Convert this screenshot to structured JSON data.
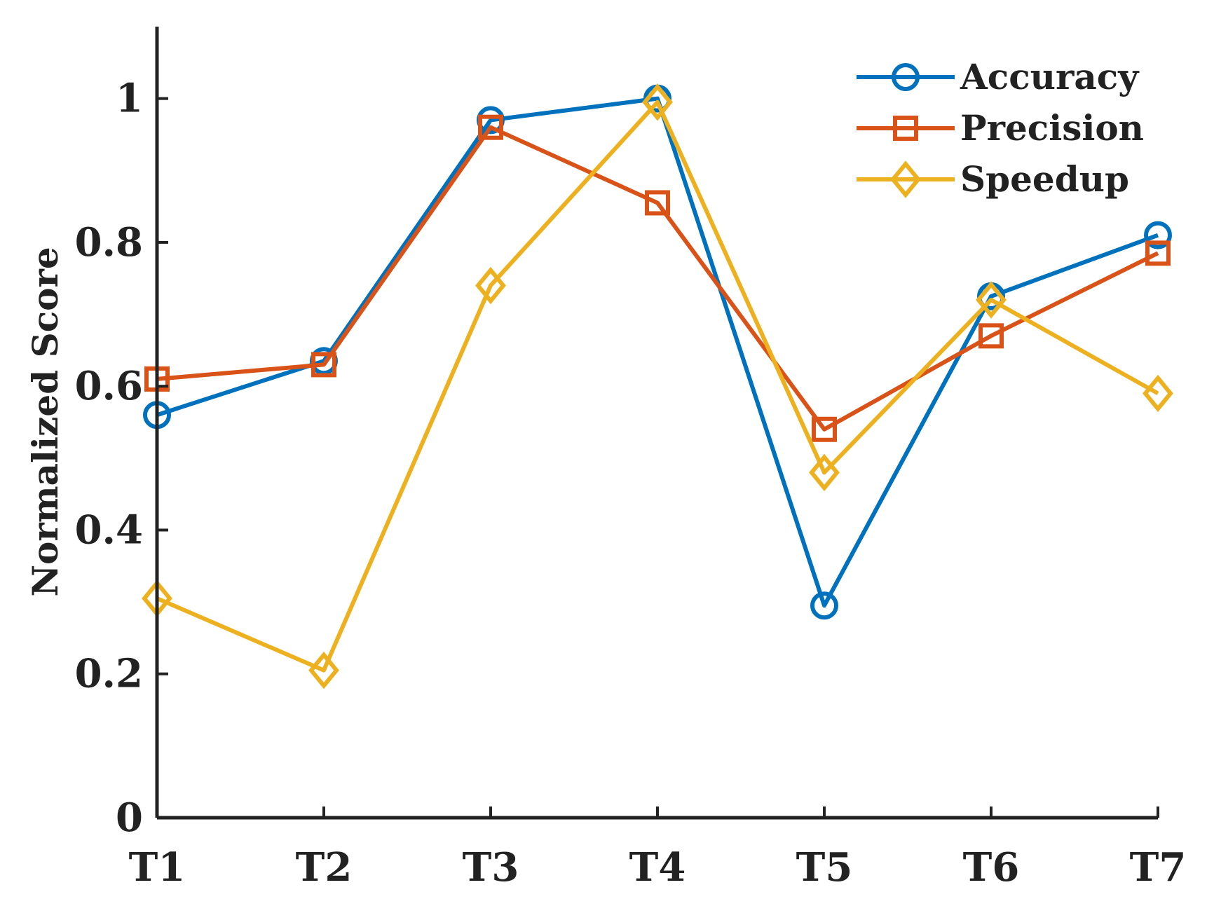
{
  "chart_data": {
    "type": "line",
    "title": "",
    "xlabel": "",
    "ylabel": "Normalized Score",
    "categories": [
      "T1",
      "T2",
      "T3",
      "T4",
      "T5",
      "T6",
      "T7"
    ],
    "ylim": [
      0,
      1.1
    ],
    "yticks": [
      0,
      0.2,
      0.4,
      0.6,
      0.8,
      1
    ],
    "ytick_labels": [
      "0",
      "0.2",
      "0.4",
      "0.6",
      "0.8",
      "1"
    ],
    "grid": false,
    "legend_position": "top-right",
    "series": [
      {
        "name": "Accuracy",
        "marker": "circle",
        "color": "#0072BD",
        "values": [
          0.56,
          0.635,
          0.97,
          1.0,
          0.295,
          0.725,
          0.81
        ]
      },
      {
        "name": "Precision",
        "marker": "square",
        "color": "#D95319",
        "values": [
          0.61,
          0.63,
          0.96,
          0.855,
          0.54,
          0.67,
          0.785
        ]
      },
      {
        "name": "Speedup",
        "marker": "diamond",
        "color": "#EDB120",
        "values": [
          0.305,
          0.205,
          0.74,
          0.995,
          0.48,
          0.72,
          0.59
        ]
      }
    ]
  }
}
